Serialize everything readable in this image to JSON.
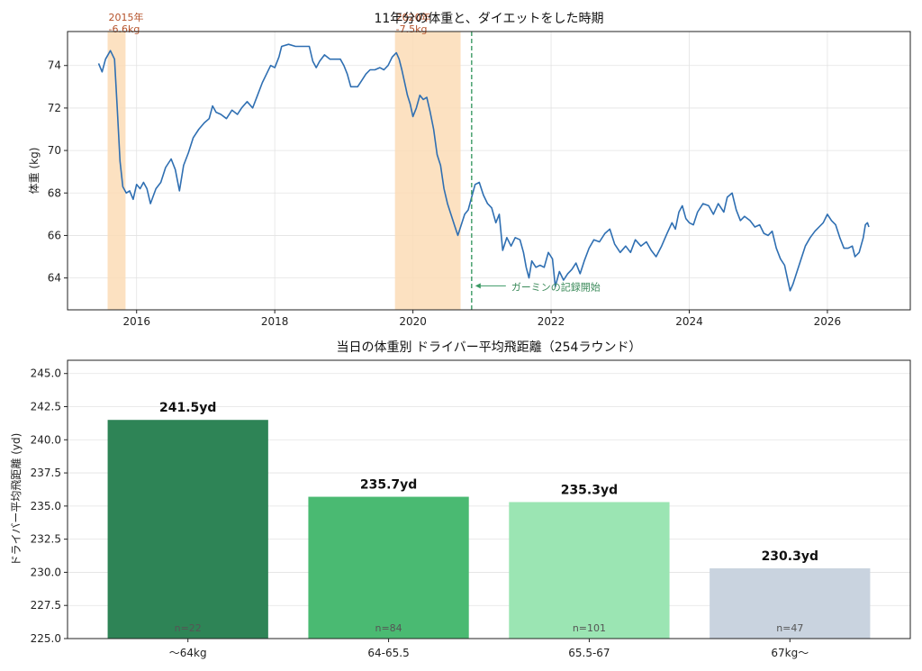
{
  "chart_data": [
    {
      "type": "line",
      "title": "11年分の体重と、ダイエットをした時期",
      "xlabel": "",
      "ylabel": "体重 (kg)",
      "xlim": [
        2015.0,
        2027.2
      ],
      "ylim": [
        62.5,
        75.6
      ],
      "x_ticks": [
        2016,
        2018,
        2020,
        2022,
        2024,
        2026
      ],
      "y_ticks": [
        64,
        66,
        68,
        70,
        72,
        74
      ],
      "grid": true,
      "series": [
        {
          "color": "#2f6fb2",
          "points": [
            [
              2015.45,
              74.1
            ],
            [
              2015.5,
              73.7
            ],
            [
              2015.55,
              74.3
            ],
            [
              2015.62,
              74.7
            ],
            [
              2015.68,
              74.3
            ],
            [
              2015.72,
              72.0
            ],
            [
              2015.76,
              69.5
            ],
            [
              2015.8,
              68.3
            ],
            [
              2015.85,
              68.0
            ],
            [
              2015.9,
              68.1
            ],
            [
              2015.95,
              67.7
            ],
            [
              2016.0,
              68.4
            ],
            [
              2016.05,
              68.2
            ],
            [
              2016.1,
              68.5
            ],
            [
              2016.15,
              68.2
            ],
            [
              2016.2,
              67.5
            ],
            [
              2016.28,
              68.2
            ],
            [
              2016.35,
              68.5
            ],
            [
              2016.42,
              69.2
            ],
            [
              2016.5,
              69.6
            ],
            [
              2016.56,
              69.1
            ],
            [
              2016.62,
              68.1
            ],
            [
              2016.68,
              69.3
            ],
            [
              2016.75,
              69.9
            ],
            [
              2016.82,
              70.6
            ],
            [
              2016.9,
              71.0
            ],
            [
              2016.98,
              71.3
            ],
            [
              2017.05,
              71.5
            ],
            [
              2017.1,
              72.1
            ],
            [
              2017.15,
              71.8
            ],
            [
              2017.22,
              71.7
            ],
            [
              2017.3,
              71.5
            ],
            [
              2017.38,
              71.9
            ],
            [
              2017.46,
              71.7
            ],
            [
              2017.52,
              72.0
            ],
            [
              2017.6,
              72.3
            ],
            [
              2017.68,
              72.0
            ],
            [
              2017.75,
              72.6
            ],
            [
              2017.82,
              73.2
            ],
            [
              2017.88,
              73.6
            ],
            [
              2017.94,
              74.0
            ],
            [
              2018.0,
              73.9
            ],
            [
              2018.06,
              74.4
            ],
            [
              2018.1,
              74.9
            ],
            [
              2018.2,
              75.0
            ],
            [
              2018.3,
              74.9
            ],
            [
              2018.4,
              74.9
            ],
            [
              2018.5,
              74.9
            ],
            [
              2018.55,
              74.2
            ],
            [
              2018.6,
              73.9
            ],
            [
              2018.65,
              74.2
            ],
            [
              2018.72,
              74.5
            ],
            [
              2018.8,
              74.3
            ],
            [
              2018.88,
              74.3
            ],
            [
              2018.95,
              74.3
            ],
            [
              2019.0,
              74.0
            ],
            [
              2019.05,
              73.6
            ],
            [
              2019.1,
              73.0
            ],
            [
              2019.15,
              73.0
            ],
            [
              2019.2,
              73.0
            ],
            [
              2019.26,
              73.3
            ],
            [
              2019.32,
              73.6
            ],
            [
              2019.38,
              73.8
            ],
            [
              2019.45,
              73.8
            ],
            [
              2019.52,
              73.9
            ],
            [
              2019.58,
              73.8
            ],
            [
              2019.64,
              74.0
            ],
            [
              2019.7,
              74.4
            ],
            [
              2019.76,
              74.6
            ],
            [
              2019.8,
              74.3
            ],
            [
              2019.84,
              73.8
            ],
            [
              2019.88,
              73.2
            ],
            [
              2019.92,
              72.6
            ],
            [
              2019.96,
              72.2
            ],
            [
              2020.0,
              71.6
            ],
            [
              2020.05,
              72.0
            ],
            [
              2020.1,
              72.6
            ],
            [
              2020.15,
              72.4
            ],
            [
              2020.2,
              72.5
            ],
            [
              2020.25,
              71.8
            ],
            [
              2020.3,
              71.0
            ],
            [
              2020.35,
              69.8
            ],
            [
              2020.4,
              69.3
            ],
            [
              2020.45,
              68.2
            ],
            [
              2020.5,
              67.5
            ],
            [
              2020.55,
              67.0
            ],
            [
              2020.6,
              66.5
            ],
            [
              2020.65,
              66.0
            ],
            [
              2020.7,
              66.5
            ],
            [
              2020.75,
              67.0
            ],
            [
              2020.8,
              67.2
            ],
            [
              2020.85,
              67.8
            ],
            [
              2020.9,
              68.4
            ],
            [
              2020.96,
              68.5
            ],
            [
              2021.02,
              67.9
            ],
            [
              2021.08,
              67.5
            ],
            [
              2021.14,
              67.3
            ],
            [
              2021.2,
              66.6
            ],
            [
              2021.25,
              67.0
            ],
            [
              2021.3,
              65.3
            ],
            [
              2021.36,
              65.9
            ],
            [
              2021.42,
              65.5
            ],
            [
              2021.48,
              65.9
            ],
            [
              2021.55,
              65.8
            ],
            [
              2021.6,
              65.2
            ],
            [
              2021.64,
              64.5
            ],
            [
              2021.68,
              64.0
            ],
            [
              2021.72,
              64.8
            ],
            [
              2021.78,
              64.5
            ],
            [
              2021.84,
              64.6
            ],
            [
              2021.9,
              64.5
            ],
            [
              2021.96,
              65.2
            ],
            [
              2022.02,
              64.9
            ],
            [
              2022.06,
              63.6
            ],
            [
              2022.12,
              64.3
            ],
            [
              2022.18,
              63.9
            ],
            [
              2022.24,
              64.2
            ],
            [
              2022.3,
              64.4
            ],
            [
              2022.36,
              64.7
            ],
            [
              2022.42,
              64.2
            ],
            [
              2022.48,
              64.8
            ],
            [
              2022.55,
              65.4
            ],
            [
              2022.62,
              65.8
            ],
            [
              2022.7,
              65.7
            ],
            [
              2022.78,
              66.1
            ],
            [
              2022.85,
              66.3
            ],
            [
              2022.92,
              65.6
            ],
            [
              2023.0,
              65.2
            ],
            [
              2023.08,
              65.5
            ],
            [
              2023.15,
              65.2
            ],
            [
              2023.22,
              65.8
            ],
            [
              2023.3,
              65.5
            ],
            [
              2023.38,
              65.7
            ],
            [
              2023.45,
              65.3
            ],
            [
              2023.52,
              65.0
            ],
            [
              2023.6,
              65.5
            ],
            [
              2023.68,
              66.1
            ],
            [
              2023.75,
              66.6
            ],
            [
              2023.8,
              66.3
            ],
            [
              2023.85,
              67.1
            ],
            [
              2023.9,
              67.4
            ],
            [
              2023.95,
              66.8
            ],
            [
              2024.0,
              66.6
            ],
            [
              2024.06,
              66.5
            ],
            [
              2024.12,
              67.1
            ],
            [
              2024.2,
              67.5
            ],
            [
              2024.28,
              67.4
            ],
            [
              2024.35,
              67.0
            ],
            [
              2024.42,
              67.5
            ],
            [
              2024.5,
              67.1
            ],
            [
              2024.55,
              67.8
            ],
            [
              2024.62,
              68.0
            ],
            [
              2024.68,
              67.2
            ],
            [
              2024.74,
              66.7
            ],
            [
              2024.8,
              66.9
            ],
            [
              2024.88,
              66.7
            ],
            [
              2024.95,
              66.4
            ],
            [
              2025.02,
              66.5
            ],
            [
              2025.08,
              66.1
            ],
            [
              2025.14,
              66.0
            ],
            [
              2025.2,
              66.2
            ],
            [
              2025.26,
              65.4
            ],
            [
              2025.32,
              64.9
            ],
            [
              2025.38,
              64.6
            ],
            [
              2025.42,
              64.0
            ],
            [
              2025.46,
              63.4
            ],
            [
              2025.5,
              63.7
            ],
            [
              2025.56,
              64.3
            ],
            [
              2025.62,
              64.9
            ],
            [
              2025.68,
              65.5
            ],
            [
              2025.75,
              65.9
            ],
            [
              2025.82,
              66.2
            ],
            [
              2025.88,
              66.4
            ],
            [
              2025.94,
              66.6
            ],
            [
              2026.0,
              67.0
            ],
            [
              2026.06,
              66.7
            ],
            [
              2026.12,
              66.5
            ],
            [
              2026.18,
              65.9
            ],
            [
              2026.24,
              65.4
            ],
            [
              2026.3,
              65.4
            ],
            [
              2026.36,
              65.5
            ],
            [
              2026.4,
              65.0
            ],
            [
              2026.46,
              65.2
            ],
            [
              2026.52,
              65.9
            ],
            [
              2026.55,
              66.5
            ],
            [
              2026.58,
              66.6
            ],
            [
              2026.6,
              66.4
            ]
          ]
        }
      ],
      "shaded_periods": [
        {
          "x_start": 2015.58,
          "x_end": 2015.84,
          "color": "#fbdcb6",
          "label_lines": [
            "2015年",
            "-6.6kg"
          ]
        },
        {
          "x_start": 2019.74,
          "x_end": 2020.69,
          "color": "#fbdcb6",
          "label_lines": [
            "2020年",
            "-7.5kg"
          ]
        }
      ],
      "vertical_marker": {
        "x": 2020.85,
        "color": "#3b9a64",
        "label": "ガーミンの記録開始",
        "label_anchor_y": 63.5
      }
    },
    {
      "type": "bar",
      "title": "当日の体重別 ドライバー平均飛距離（254ラウンド）",
      "xlabel": "",
      "ylabel": "ドライバー平均飛距離 (yd)",
      "ylim": [
        225.0,
        246.0
      ],
      "y_ticks": [
        225.0,
        227.5,
        230.0,
        232.5,
        235.0,
        237.5,
        240.0,
        242.5,
        245.0
      ],
      "grid": true,
      "categories": [
        "〜64kg",
        "64-65.5",
        "65.5-67",
        "67kg〜"
      ],
      "values": [
        241.5,
        235.7,
        235.3,
        230.3
      ],
      "value_labels": [
        "241.5yd",
        "235.7yd",
        "235.3yd",
        "230.3yd"
      ],
      "counts": [
        "n=22",
        "n=84",
        "n=101",
        "n=47"
      ],
      "colors": [
        "#2e8456",
        "#4aba72",
        "#9be5b3",
        "#c9d3df"
      ]
    }
  ]
}
